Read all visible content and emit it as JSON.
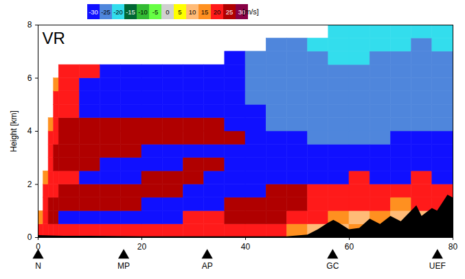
{
  "chart_data": {
    "type": "heatmap",
    "panel_label": "VR",
    "ylabel": "Height [km]",
    "xlim": [
      0,
      80
    ],
    "xticks": [
      0,
      20,
      40,
      60,
      80
    ],
    "ylim": [
      0,
      8
    ],
    "yticks": [
      0,
      2,
      4,
      6,
      8
    ],
    "x_edges": [
      0,
      1,
      2,
      3,
      4,
      8,
      12,
      16,
      20,
      24,
      28,
      32,
      36,
      40,
      44,
      48,
      52,
      56,
      60,
      64,
      68,
      72,
      76,
      80
    ],
    "y_edges": [
      0,
      0.5,
      1,
      1.5,
      2,
      2.5,
      3,
      3.5,
      4,
      4.5,
      5,
      5.5,
      6,
      6.5,
      7,
      7.5,
      8
    ],
    "values": [
      [
        20,
        20,
        20,
        20,
        20,
        20,
        20,
        20,
        20,
        20,
        20,
        20,
        20,
        20,
        20,
        15,
        10,
        10,
        15,
        10,
        10,
        15,
        10
      ],
      [
        15,
        20,
        25,
        25,
        -30,
        -30,
        -30,
        -30,
        -30,
        -30,
        20,
        20,
        25,
        25,
        25,
        20,
        20,
        15,
        10,
        15,
        10,
        10,
        15
      ],
      [
        null,
        20,
        25,
        25,
        25,
        25,
        25,
        25,
        -30,
        -30,
        -30,
        -30,
        25,
        25,
        25,
        25,
        20,
        20,
        20,
        20,
        15,
        20,
        20
      ],
      [
        null,
        20,
        20,
        20,
        25,
        25,
        25,
        25,
        25,
        25,
        -30,
        -30,
        -30,
        -30,
        25,
        25,
        20,
        20,
        20,
        20,
        20,
        20,
        20
      ],
      [
        null,
        15,
        20,
        20,
        20,
        -30,
        -30,
        -30,
        25,
        25,
        25,
        -30,
        -30,
        -30,
        -30,
        -30,
        -30,
        -30,
        20,
        -30,
        -30,
        20,
        -30
      ],
      [
        null,
        null,
        20,
        25,
        25,
        25,
        -30,
        -30,
        -30,
        -30,
        25,
        25,
        -30,
        -30,
        -30,
        -30,
        -30,
        -30,
        -30,
        -30,
        -30,
        -30,
        -30
      ],
      [
        null,
        null,
        20,
        25,
        25,
        25,
        25,
        25,
        -30,
        -30,
        -30,
        -30,
        -30,
        -30,
        -30,
        -30,
        -30,
        -30,
        -30,
        -30,
        -30,
        -30,
        -30
      ],
      [
        null,
        null,
        20,
        20,
        25,
        25,
        25,
        25,
        25,
        25,
        25,
        25,
        25,
        -30,
        -30,
        -30,
        -25,
        -25,
        -25,
        -25,
        -30,
        -30,
        -30
      ],
      [
        null,
        null,
        15,
        20,
        25,
        25,
        25,
        25,
        25,
        25,
        25,
        25,
        -30,
        -30,
        -25,
        -25,
        -25,
        -25,
        -25,
        -25,
        -25,
        -25,
        -25
      ],
      [
        null,
        null,
        null,
        20,
        20,
        -30,
        -30,
        -30,
        -30,
        -30,
        -30,
        -30,
        -30,
        -30,
        -25,
        -25,
        -25,
        -25,
        -25,
        -25,
        -25,
        -25,
        -25
      ],
      [
        null,
        null,
        null,
        20,
        20,
        -30,
        -30,
        -30,
        -30,
        -30,
        -30,
        -30,
        -30,
        -25,
        -25,
        -25,
        -25,
        -25,
        -25,
        -25,
        -25,
        -25,
        -25
      ],
      [
        null,
        null,
        null,
        15,
        20,
        -30,
        -30,
        -30,
        -30,
        -30,
        -30,
        -30,
        -30,
        -25,
        -25,
        -25,
        -25,
        -25,
        -25,
        -25,
        -25,
        -25,
        -25
      ],
      [
        null,
        null,
        null,
        null,
        20,
        20,
        -30,
        -30,
        -30,
        -30,
        -30,
        -30,
        -30,
        -25,
        -25,
        -25,
        -25,
        -25,
        -25,
        -25,
        -25,
        -25,
        -25
      ],
      [
        null,
        null,
        null,
        null,
        null,
        null,
        null,
        null,
        null,
        null,
        null,
        null,
        -30,
        -25,
        -25,
        -25,
        -25,
        -20,
        -20,
        -25,
        -25,
        -25,
        -25
      ],
      [
        null,
        null,
        null,
        null,
        null,
        null,
        null,
        null,
        null,
        null,
        null,
        null,
        null,
        null,
        -25,
        -25,
        -20,
        -20,
        -20,
        -20,
        -20,
        -25,
        -20
      ],
      [
        null,
        null,
        null,
        null,
        null,
        null,
        null,
        null,
        null,
        null,
        null,
        null,
        null,
        null,
        null,
        null,
        null,
        -20,
        -20,
        -20,
        -20,
        -20,
        -20
      ]
    ],
    "color_bar": {
      "ticks": [
        -30,
        -25,
        -20,
        -15,
        -10,
        -5,
        0,
        5,
        10,
        15,
        20,
        25,
        30
      ],
      "colors": [
        "#1010ff",
        "#4f86dc",
        "#33dded",
        "#006633",
        "#33bb33",
        "#66ff44",
        "#d0d0d0",
        "#ffff00",
        "#ffbb77",
        "#ff9020",
        "#ff1a1a",
        "#b00000",
        "#880044"
      ],
      "label": "[m/s]"
    },
    "terrain": {
      "color": "#000000",
      "x": [
        0,
        5,
        10,
        20,
        30,
        40,
        48,
        52,
        54,
        56,
        57,
        58,
        60,
        62,
        64,
        66,
        68,
        70,
        72,
        73,
        74,
        76,
        77,
        78,
        79,
        80
      ],
      "height": [
        0.08,
        0.05,
        0.05,
        0.03,
        0.03,
        0.03,
        0.03,
        0.1,
        0.3,
        0.55,
        0.65,
        0.55,
        0.3,
        0.35,
        0.7,
        0.5,
        0.8,
        0.6,
        1.0,
        1.2,
        0.8,
        1.1,
        1.0,
        1.3,
        1.6,
        1.5
      ]
    },
    "stations": {
      "x": [
        0,
        16.5,
        32.6,
        56.8,
        77
      ],
      "labels": [
        "N",
        "MP",
        "AP",
        "GC",
        "UEF"
      ]
    }
  }
}
